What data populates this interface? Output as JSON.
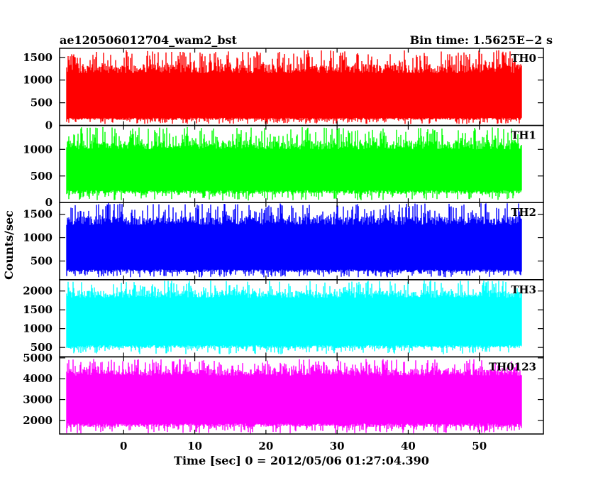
{
  "header": {
    "left_title": "ae120506012704_wam2_bst",
    "right_title": "Bin time: 1.5625E−2 s"
  },
  "chart_data": {
    "type": "line",
    "xlabel": "Time [sec] 0 = 2012/05/06 01:27:04.390",
    "ylabel": "Counts/sec",
    "xlim": [
      -9,
      59
    ],
    "x_range": [
      -8,
      56
    ],
    "x_ticks": [
      0,
      10,
      20,
      30,
      40,
      50
    ],
    "grid": false,
    "panels": [
      {
        "name": "TH0",
        "color": "#ff0000",
        "ylim": [
          0,
          1700
        ],
        "y_ticks": [
          0,
          500,
          1000,
          1500
        ],
        "band": [
          170,
          1150
        ],
        "spike_min": 30,
        "spike_max": 1660
      },
      {
        "name": "TH1",
        "color": "#00ff00",
        "ylim": [
          0,
          1450
        ],
        "y_ticks": [
          0,
          500,
          1000
        ],
        "band": [
          230,
          1000
        ],
        "spike_min": 40,
        "spike_max": 1420
      },
      {
        "name": "TH2",
        "color": "#0000ff",
        "ylim": [
          100,
          1750
        ],
        "y_ticks": [
          500,
          1000,
          1500
        ],
        "band": [
          320,
          1270
        ],
        "spike_min": 150,
        "spike_max": 1740
      },
      {
        "name": "TH3",
        "color": "#00ffff",
        "ylim": [
          250,
          2300
        ],
        "y_ticks": [
          500,
          1000,
          1500,
          2000
        ],
        "band": [
          560,
          1820
        ],
        "spike_min": 320,
        "spike_max": 2280
      },
      {
        "name": "TH0123",
        "color": "#ff00ff",
        "ylim": [
          1350,
          5050
        ],
        "y_ticks": [
          2000,
          3000,
          4000,
          5000
        ],
        "band": [
          1850,
          4150
        ],
        "spike_min": 1380,
        "spike_max": 4950
      }
    ]
  }
}
